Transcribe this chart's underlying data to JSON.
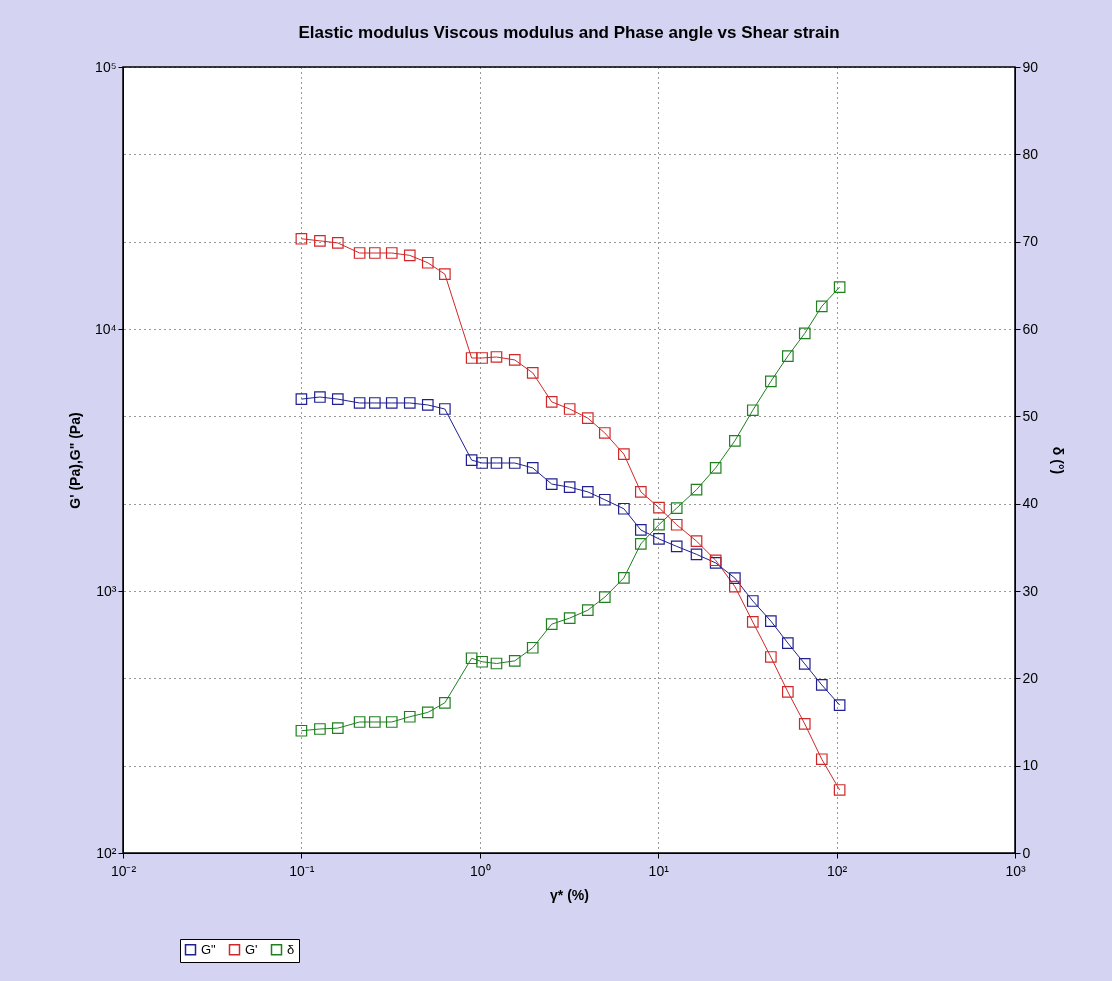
{
  "chart_data": {
    "type": "line",
    "title": "Elastic modulus Viscous modulus and Phase angle vs Shear strain",
    "xlabel": "γ* (%)",
    "ylabel": "G' (Pa),G\" (Pa)",
    "y2label": "δ (°)",
    "x": [
      0.1,
      0.127,
      0.16,
      0.212,
      0.258,
      0.321,
      0.405,
      0.511,
      0.637,
      0.9,
      1.03,
      1.24,
      1.57,
      1.98,
      2.53,
      3.19,
      4.03,
      5.02,
      6.42,
      7.99,
      10.1,
      12.7,
      16.4,
      21,
      26.9,
      33.9,
      42.8,
      53.3,
      66.3,
      82.6,
      104
    ],
    "series": [
      {
        "name": "G\"",
        "color": "#202090",
        "values": [
          5400,
          5500,
          5400,
          5220,
          5220,
          5220,
          5220,
          5130,
          4950,
          3160,
          3080,
          3080,
          3080,
          2950,
          2560,
          2490,
          2390,
          2230,
          2060,
          1710,
          1580,
          1480,
          1380,
          1280,
          1120,
          916,
          768,
          633,
          527,
          438,
          367
        ]
      },
      {
        "name": "G'",
        "color": "#d02828",
        "values": [
          22100,
          21700,
          21300,
          19500,
          19500,
          19500,
          19100,
          17900,
          16200,
          7750,
          7750,
          7820,
          7620,
          6800,
          5270,
          4950,
          4570,
          4010,
          3330,
          2390,
          2080,
          1790,
          1550,
          1310,
          1040,
          762,
          560,
          412,
          311,
          228,
          174
        ]
      },
      {
        "name": "δ",
        "color": "#208020",
        "axis": "y2",
        "values": [
          14.0,
          14.2,
          14.3,
          15.0,
          15.0,
          15.0,
          15.6,
          16.1,
          17.2,
          22.3,
          21.9,
          21.7,
          22.0,
          23.5,
          26.2,
          26.9,
          27.8,
          29.3,
          31.5,
          35.4,
          37.6,
          39.5,
          41.6,
          44.1,
          47.2,
          50.7,
          54.0,
          56.9,
          59.5,
          62.6,
          64.8
        ]
      }
    ],
    "log": "xy",
    "xlim": [
      0.01,
      1000
    ],
    "xticks": [
      {
        "value": 0.01,
        "label": "10⁻²"
      },
      {
        "value": 0.1,
        "label": "10⁻¹"
      },
      {
        "value": 1,
        "label": "10⁰"
      },
      {
        "value": 10,
        "label": "10¹"
      },
      {
        "value": 100,
        "label": "10²"
      },
      {
        "value": 1000,
        "label": "10³"
      }
    ],
    "ylim": [
      100,
      100000
    ],
    "yticks": [
      {
        "value": 100,
        "label": "10²"
      },
      {
        "value": 1000,
        "label": "10³"
      },
      {
        "value": 10000,
        "label": "10⁴"
      },
      {
        "value": 100000,
        "label": "10⁵"
      }
    ],
    "y2lim": [
      0,
      90
    ],
    "y2ticks": [
      0,
      10,
      20,
      30,
      40,
      50,
      60,
      70,
      80,
      90
    ],
    "grid": true,
    "legend": "bottom left",
    "marker": "square",
    "line_style": "solid"
  }
}
